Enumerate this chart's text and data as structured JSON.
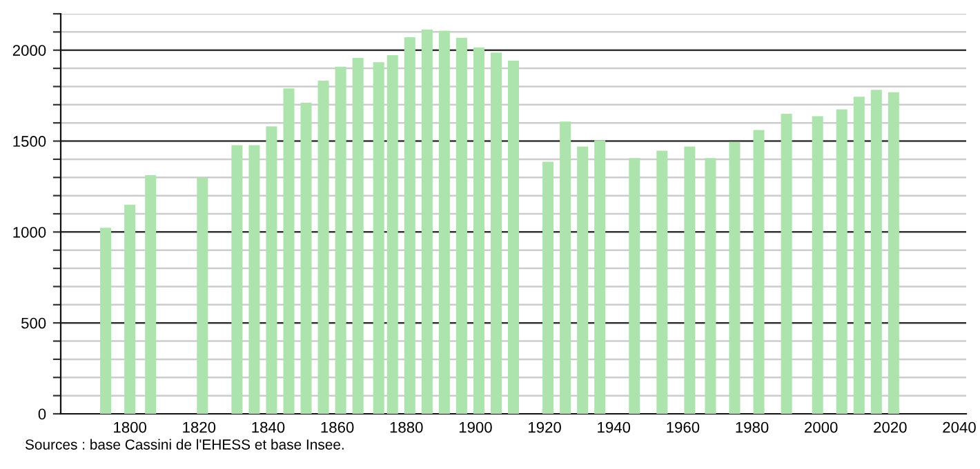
{
  "chart_data": {
    "type": "bar",
    "x": [
      1793,
      1800,
      1806,
      1821,
      1831,
      1836,
      1841,
      1846,
      1851,
      1856,
      1861,
      1866,
      1872,
      1876,
      1881,
      1886,
      1891,
      1896,
      1901,
      1906,
      1911,
      1921,
      1926,
      1931,
      1936,
      1946,
      1954,
      1962,
      1968,
      1975,
      1982,
      1990,
      1999,
      2006,
      2011,
      2016,
      2021
    ],
    "values": [
      1023,
      1150,
      1312,
      1299,
      1477,
      1477,
      1581,
      1789,
      1711,
      1832,
      1909,
      1957,
      1934,
      1972,
      2071,
      2114,
      2107,
      2068,
      2015,
      1987,
      1942,
      1386,
      1607,
      1470,
      1505,
      1406,
      1447,
      1470,
      1406,
      1495,
      1561,
      1650,
      1637,
      1675,
      1744,
      1782,
      1769
    ],
    "color": "#ade3ad",
    "xlim": [
      1780,
      2042
    ],
    "xticks": [
      1800,
      1820,
      1840,
      1860,
      1880,
      1900,
      1920,
      1940,
      1960,
      1980,
      2000,
      2020,
      2040
    ],
    "ylim": [
      0,
      2200
    ],
    "yticks": [
      0,
      {
        "value": 100,
        "label": null
      },
      {
        "value": 200,
        "label": null
      },
      {
        "value": 300,
        "label": null
      },
      {
        "value": 400,
        "label": null
      },
      500,
      {
        "value": 600,
        "label": null
      },
      {
        "value": 700,
        "label": null
      },
      {
        "value": 800,
        "label": null
      },
      {
        "value": 900,
        "label": null
      },
      1000,
      {
        "value": 1100,
        "label": null
      },
      {
        "value": 1200,
        "label": null
      },
      {
        "value": 1300,
        "label": null
      },
      {
        "value": 1400,
        "label": null
      },
      1500,
      {
        "value": 1600,
        "label": null
      },
      {
        "value": 1700,
        "label": null
      },
      {
        "value": 1800,
        "label": null
      },
      {
        "value": 1900,
        "label": null
      },
      2000,
      {
        "value": 2100,
        "label": null
      },
      {
        "value": 2200,
        "label": null
      }
    ],
    "grid": "y",
    "annotations": [
      "Sources : base Cassini de l'EHESS et base Insee."
    ]
  }
}
